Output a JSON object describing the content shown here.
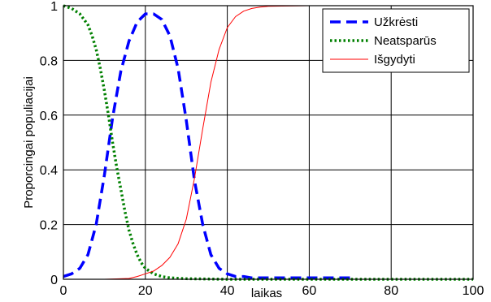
{
  "chart_data": {
    "type": "line",
    "xlabel": "laikas",
    "ylabel": "Proporcingai populiacijai",
    "xlim": [
      0,
      100
    ],
    "ylim": [
      0,
      1
    ],
    "x_ticks": [
      "0",
      "20",
      "40",
      "60",
      "80",
      "100"
    ],
    "y_ticks": [
      "0",
      "0.2",
      "0.4",
      "0.6",
      "0.8",
      "1"
    ],
    "grid": true,
    "legend_position": "top-right",
    "series": [
      {
        "name": "Užkrėsti",
        "color": "#0000ff",
        "style": "dashed",
        "x": [
          0,
          2,
          4,
          6,
          8,
          10,
          12,
          14,
          16,
          18,
          20,
          22,
          24,
          26,
          28,
          30,
          32,
          34,
          36,
          38,
          40,
          42,
          44,
          46,
          48,
          50,
          60,
          70
        ],
        "y": [
          0.01,
          0.02,
          0.04,
          0.09,
          0.2,
          0.38,
          0.59,
          0.76,
          0.87,
          0.94,
          0.97,
          0.97,
          0.95,
          0.89,
          0.77,
          0.58,
          0.36,
          0.2,
          0.09,
          0.04,
          0.02,
          0.01,
          0.01,
          0.005,
          0.005,
          0.005,
          0.005,
          0.005
        ]
      },
      {
        "name": "Neatsparūs",
        "color": "#008000",
        "style": "dotted",
        "x": [
          0,
          2,
          4,
          6,
          7,
          8,
          9,
          10,
          11,
          12,
          13,
          14,
          15,
          16,
          17,
          18,
          19,
          20,
          22,
          24,
          26,
          30,
          40,
          60,
          80,
          100
        ],
        "y": [
          1.0,
          0.99,
          0.97,
          0.93,
          0.89,
          0.84,
          0.77,
          0.69,
          0.6,
          0.5,
          0.41,
          0.33,
          0.25,
          0.18,
          0.13,
          0.09,
          0.06,
          0.04,
          0.02,
          0.01,
          0.005,
          0.002,
          0.0,
          0.0,
          0.0,
          0.0
        ]
      },
      {
        "name": "Išgydyti",
        "color": "#ff0000",
        "style": "solid",
        "x": [
          0,
          10,
          16,
          18,
          20,
          22,
          24,
          26,
          28,
          30,
          32,
          34,
          36,
          38,
          40,
          42,
          44,
          46,
          48,
          50,
          60,
          80,
          100
        ],
        "y": [
          0.0,
          0.0,
          0.003,
          0.01,
          0.02,
          0.03,
          0.05,
          0.08,
          0.13,
          0.22,
          0.37,
          0.55,
          0.72,
          0.84,
          0.92,
          0.96,
          0.98,
          0.99,
          0.995,
          0.998,
          1.0,
          1.0,
          1.0
        ]
      }
    ]
  }
}
